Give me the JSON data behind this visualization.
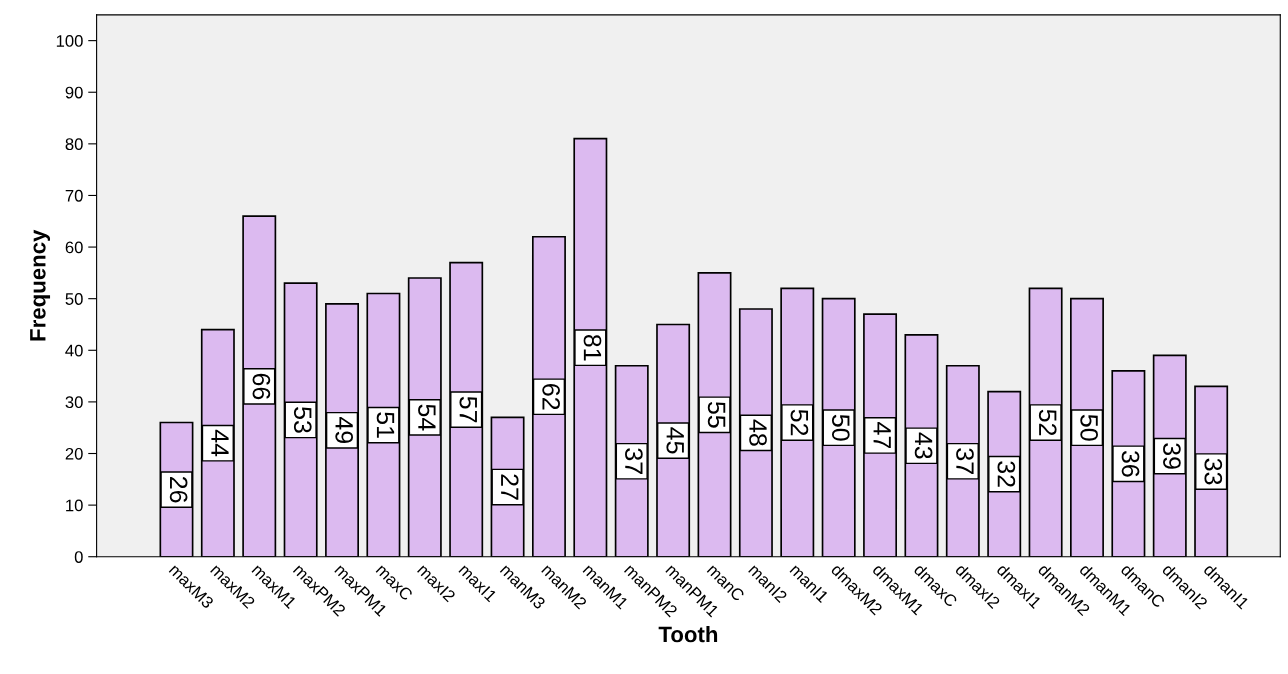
{
  "chart_data": {
    "type": "bar",
    "xlabel": "Tooth",
    "ylabel": "Frequency",
    "categories": [
      "maxM3",
      "maxM2",
      "maxM1",
      "maxPM2",
      "maxPM1",
      "maxC",
      "maxI2",
      "maxI1",
      "manM3",
      "manM2",
      "manM1",
      "manPM2",
      "manPM1",
      "manC",
      "manI2",
      "manI1",
      "dmaxM2",
      "dmaxM1",
      "dmaxC",
      "dmaxI2",
      "dmaxI1",
      "dmanM2",
      "dmanM1",
      "dmanC",
      "dmanI2",
      "dmanI1"
    ],
    "values": [
      26,
      44,
      66,
      53,
      49,
      51,
      54,
      57,
      27,
      62,
      81,
      37,
      45,
      55,
      48,
      52,
      50,
      47,
      43,
      37,
      32,
      52,
      50,
      36,
      39,
      33
    ],
    "color": "#dcbaf0",
    "ylim": [
      0,
      105
    ],
    "yticks": [
      0,
      10,
      20,
      30,
      40,
      50,
      60,
      70,
      80,
      90,
      100
    ],
    "grid": false,
    "data_labels": true
  }
}
